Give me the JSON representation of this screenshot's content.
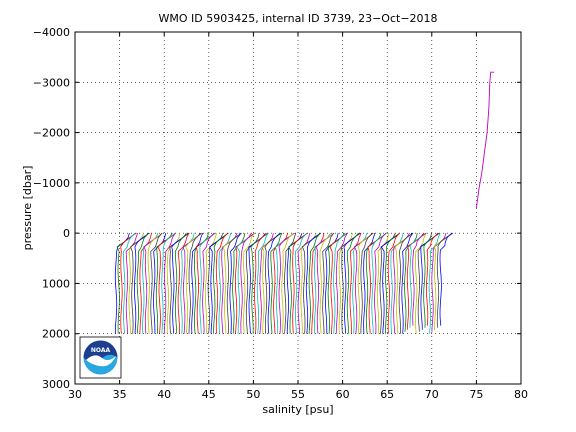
{
  "chart_data": {
    "type": "line",
    "title": "WMO ID 5903425, internal ID 3739, 23−Oct−2018",
    "xlabel": "salinity [psu]",
    "ylabel": "pressure [dbar]",
    "xlim": [
      30,
      80
    ],
    "ylim": [
      -4000,
      3000
    ],
    "y_reversed": true,
    "grid": true,
    "grid_style": "dotted",
    "x_ticks": [
      30,
      35,
      40,
      45,
      50,
      55,
      60,
      65,
      70,
      75,
      80
    ],
    "y_ticks": [
      -4000,
      -3000,
      -2000,
      -1000,
      0,
      1000,
      2000,
      3000
    ],
    "x_tick_labels": [
      "30",
      "35",
      "40",
      "45",
      "50",
      "55",
      "60",
      "65",
      "70",
      "75",
      "80"
    ],
    "y_tick_labels": [
      "−4000",
      "−3000",
      "−2000",
      "−1000",
      "0",
      "1000",
      "2000",
      "3000"
    ],
    "profiles": {
      "count": 120,
      "deep_salinity_start": 34.6,
      "deep_salinity_end": 71.0,
      "surface_offset": 1.5,
      "max_pressure": 2000,
      "surface_pressure": 0,
      "colors": [
        "#0000ff",
        "#008000",
        "#ff0000",
        "#00bfbf",
        "#bf00bf",
        "#bfbf00",
        "#404040"
      ]
    },
    "outlier_series": [
      {
        "name": "",
        "color": "#bf00bf",
        "x": [
          75.0,
          75.3,
          75.6,
          75.9,
          76.2,
          76.4,
          76.5,
          76.6,
          77.0
        ],
        "y": [
          -500,
          -900,
          -1200,
          -1600,
          -2000,
          -2500,
          -3000,
          -3200,
          -3200
        ]
      }
    ],
    "logo": {
      "text": "NOAA",
      "colors": [
        "#1e3f8f",
        "#2aa7e0",
        "#ffffff"
      ]
    }
  }
}
